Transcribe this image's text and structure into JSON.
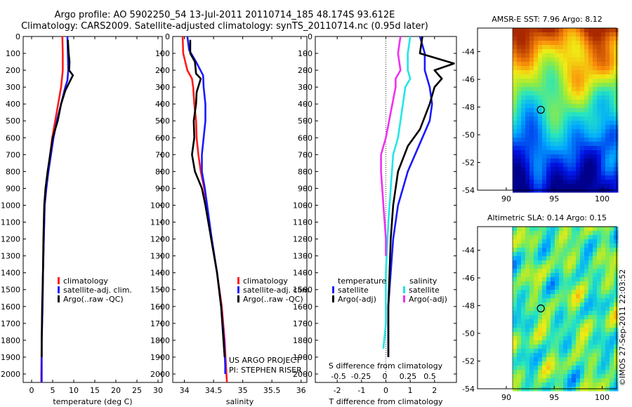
{
  "header": {
    "title_line1": "Argo profile: AO 5902250_54 13-Jul-2011 20110714_185 48.174S 93.612E",
    "title_line2": "Climatology: CARS2009. Satellite-adjusted climatology: synTS_20110714.nc (0.95d later)"
  },
  "colors": {
    "climatology": "#ff1a1a",
    "satellite": "#1a1aff",
    "argo": "#000000",
    "sat_salinity": "#22e6e6",
    "argo_salinity": "#f030f0"
  },
  "depth_axis": {
    "min": 0,
    "max": 2050,
    "ticks": [
      0,
      100,
      200,
      300,
      400,
      500,
      600,
      700,
      800,
      900,
      1000,
      1100,
      1200,
      1300,
      1400,
      1500,
      1600,
      1700,
      1800,
      1900,
      2000
    ]
  },
  "chart_data": [
    {
      "id": "temperature",
      "type": "line",
      "xlabel": "temperature (deg C)",
      "xlim": [
        -2,
        31
      ],
      "xticks": [
        0,
        5,
        10,
        15,
        20,
        25,
        30
      ],
      "legend": [
        "climatology",
        "satellite-adj. clim.",
        "Argo(..raw -QC)"
      ],
      "series": [
        {
          "name": "climatology",
          "color": "climatology",
          "points": [
            [
              7.3,
              0
            ],
            [
              7.4,
              100
            ],
            [
              7.4,
              200
            ],
            [
              7.0,
              300
            ],
            [
              6.3,
              400
            ],
            [
              5.6,
              500
            ],
            [
              4.9,
              600
            ],
            [
              4.4,
              700
            ],
            [
              3.9,
              800
            ],
            [
              3.5,
              900
            ],
            [
              3.1,
              1000
            ],
            [
              2.9,
              1200
            ],
            [
              2.7,
              1400
            ],
            [
              2.6,
              1600
            ],
            [
              2.4,
              1800
            ],
            [
              2.3,
              2000
            ],
            [
              2.3,
              2050
            ]
          ]
        },
        {
          "name": "satellite-adj. clim.",
          "color": "satellite",
          "points": [
            [
              8.5,
              0
            ],
            [
              8.6,
              100
            ],
            [
              8.7,
              200
            ],
            [
              8.5,
              260
            ],
            [
              8.0,
              300
            ],
            [
              7.0,
              400
            ],
            [
              6.0,
              500
            ],
            [
              5.2,
              600
            ],
            [
              4.6,
              700
            ],
            [
              4.0,
              800
            ],
            [
              3.5,
              900
            ],
            [
              3.1,
              1000
            ],
            [
              2.9,
              1200
            ],
            [
              2.7,
              1400
            ],
            [
              2.6,
              1600
            ],
            [
              2.4,
              1800
            ],
            [
              2.4,
              2000
            ],
            [
              2.4,
              2050
            ]
          ]
        },
        {
          "name": "Argo(..raw -QC)",
          "color": "argo",
          "points": [
            [
              8.6,
              20
            ],
            [
              8.8,
              100
            ],
            [
              9.0,
              150
            ],
            [
              8.9,
              200
            ],
            [
              9.8,
              230
            ],
            [
              9.0,
              270
            ],
            [
              8.0,
              320
            ],
            [
              7.0,
              400
            ],
            [
              6.2,
              500
            ],
            [
              5.0,
              600
            ],
            [
              4.4,
              700
            ],
            [
              3.8,
              800
            ],
            [
              3.3,
              900
            ],
            [
              3.0,
              1000
            ],
            [
              2.8,
              1200
            ],
            [
              2.7,
              1400
            ],
            [
              2.5,
              1600
            ],
            [
              2.4,
              1800
            ],
            [
              2.4,
              1900
            ]
          ]
        }
      ]
    },
    {
      "id": "salinity",
      "type": "line",
      "xlabel": "salinity",
      "xlim": [
        33.8,
        36.1
      ],
      "xticks": [
        34,
        34.5,
        35,
        35.5,
        36
      ],
      "legend": [
        "climatology",
        "satellite-adj. clim.",
        "Argo(..raw -QC)"
      ],
      "credits": [
        "US ARGO PROJECT",
        "PI: STEPHEN RISER"
      ],
      "series": [
        {
          "name": "climatology",
          "color": "climatology",
          "points": [
            [
              33.97,
              0
            ],
            [
              33.98,
              100
            ],
            [
              34.05,
              200
            ],
            [
              34.13,
              250
            ],
            [
              34.15,
              300
            ],
            [
              34.17,
              400
            ],
            [
              34.2,
              500
            ],
            [
              34.21,
              600
            ],
            [
              34.24,
              700
            ],
            [
              34.28,
              800
            ],
            [
              34.34,
              900
            ],
            [
              34.38,
              1000
            ],
            [
              34.46,
              1200
            ],
            [
              34.56,
              1400
            ],
            [
              34.64,
              1600
            ],
            [
              34.69,
              1800
            ],
            [
              34.72,
              2000
            ],
            [
              34.73,
              2050
            ]
          ]
        },
        {
          "name": "satellite-adj. clim.",
          "color": "satellite",
          "points": [
            [
              34.05,
              0
            ],
            [
              34.08,
              80
            ],
            [
              34.2,
              150
            ],
            [
              34.32,
              230
            ],
            [
              34.33,
              300
            ],
            [
              34.36,
              400
            ],
            [
              34.36,
              500
            ],
            [
              34.33,
              600
            ],
            [
              34.3,
              700
            ],
            [
              34.3,
              800
            ],
            [
              34.35,
              900
            ],
            [
              34.39,
              1000
            ],
            [
              34.47,
              1200
            ],
            [
              34.56,
              1400
            ],
            [
              34.63,
              1600
            ],
            [
              34.68,
              1800
            ],
            [
              34.7,
              1950
            ],
            [
              34.7,
              2000
            ]
          ]
        },
        {
          "name": "Argo(..raw -QC)",
          "color": "argo",
          "points": [
            [
              34.1,
              20
            ],
            [
              34.1,
              100
            ],
            [
              34.18,
              150
            ],
            [
              34.2,
              220
            ],
            [
              34.28,
              250
            ],
            [
              34.21,
              330
            ],
            [
              34.2,
              400
            ],
            [
              34.16,
              500
            ],
            [
              34.17,
              600
            ],
            [
              34.13,
              700
            ],
            [
              34.18,
              800
            ],
            [
              34.3,
              900
            ],
            [
              34.36,
              1000
            ],
            [
              34.46,
              1200
            ],
            [
              34.56,
              1400
            ],
            [
              34.63,
              1600
            ],
            [
              34.67,
              1800
            ],
            [
              34.69,
              1900
            ]
          ]
        }
      ]
    },
    {
      "id": "difference",
      "type": "line",
      "xlabel": "T difference from climatology",
      "xlim": [
        -2.9,
        2.9
      ],
      "xticks": [
        -2,
        -1,
        0,
        1,
        2
      ],
      "top_axis_label": "S difference from climatology",
      "top_ticks": [
        "-0.5",
        "-0.25",
        "0",
        "0.25",
        "0.5"
      ],
      "legend_left_title": "temperature",
      "legend_right_title": "salinity",
      "legend_left": [
        "satellite",
        "Argo(-adj)"
      ],
      "legend_right": [
        "satellite",
        "Argo(-adj)"
      ],
      "series": [
        {
          "name": "temperature satellite",
          "color": "satellite",
          "points": [
            [
              1.4,
              0
            ],
            [
              1.6,
              100
            ],
            [
              1.6,
              200
            ],
            [
              1.8,
              300
            ],
            [
              1.9,
              400
            ],
            [
              1.8,
              500
            ],
            [
              1.5,
              600
            ],
            [
              1.2,
              700
            ],
            [
              0.9,
              800
            ],
            [
              0.7,
              900
            ],
            [
              0.5,
              1000
            ],
            [
              0.3,
              1200
            ],
            [
              0.2,
              1400
            ],
            [
              0.1,
              1600
            ],
            [
              0.1,
              1800
            ],
            [
              0.1,
              1900
            ]
          ]
        },
        {
          "name": "temperature Argo(-adj)",
          "color": "argo",
          "points": [
            [
              1.5,
              0
            ],
            [
              1.4,
              100
            ],
            [
              2.8,
              160
            ],
            [
              2.0,
              200
            ],
            [
              2.3,
              250
            ],
            [
              2.0,
              300
            ],
            [
              1.8,
              400
            ],
            [
              1.4,
              550
            ],
            [
              0.9,
              650
            ],
            [
              0.5,
              800
            ],
            [
              0.3,
              1000
            ],
            [
              0.2,
              1200
            ],
            [
              0.1,
              1600
            ],
            [
              0.1,
              1900
            ]
          ]
        },
        {
          "name": "salinity satellite",
          "color": "sat_salinity",
          "points": [
            [
              1.0,
              0
            ],
            [
              0.9,
              100
            ],
            [
              0.9,
              200
            ],
            [
              1.0,
              250
            ],
            [
              0.8,
              300
            ],
            [
              0.7,
              400
            ],
            [
              0.6,
              500
            ],
            [
              0.5,
              600
            ],
            [
              0.3,
              700
            ],
            [
              0.2,
              900
            ],
            [
              0.1,
              1100
            ],
            [
              0.0,
              1400
            ],
            [
              0.0,
              1700
            ],
            [
              -0.1,
              1850
            ]
          ]
        },
        {
          "name": "salinity Argo(-adj)",
          "color": "argo_salinity",
          "points": [
            [
              0.6,
              0
            ],
            [
              0.5,
              100
            ],
            [
              0.6,
              200
            ],
            [
              0.4,
              250
            ],
            [
              0.4,
              300
            ],
            [
              0.2,
              450
            ],
            [
              0.0,
              600
            ],
            [
              -0.2,
              700
            ],
            [
              -0.2,
              800
            ],
            [
              -0.1,
              1000
            ],
            [
              0.0,
              1200
            ],
            [
              0.0,
              1300
            ]
          ]
        }
      ]
    },
    {
      "id": "sst_map",
      "type": "heatmap",
      "title": "AMSR-E SST: 7.96 Argo: 8.12",
      "xticks": [
        90,
        95,
        100
      ],
      "yticks": [
        -44,
        -46,
        -48,
        -50,
        -52,
        -54
      ],
      "xlim": [
        87,
        101.5
      ],
      "ylim": [
        -54,
        -42.3
      ],
      "argo_position": [
        93.6,
        -48.2
      ]
    },
    {
      "id": "sla_map",
      "type": "heatmap",
      "title": "Altimetric SLA: 0.14 Argo: 0.15",
      "xticks": [
        90,
        95,
        100
      ],
      "yticks": [
        -44,
        -46,
        -48,
        -50,
        -52,
        -54
      ],
      "xlim": [
        87,
        101.5
      ],
      "ylim": [
        -54,
        -42.3
      ],
      "argo_position": [
        93.6,
        -48.2
      ]
    }
  ],
  "timestamp": "©IMOS 27-Sep-2011 22:03:52"
}
